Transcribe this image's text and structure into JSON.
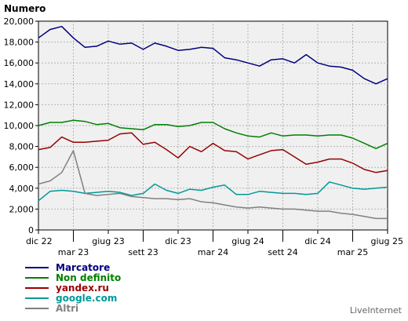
{
  "chart_data": {
    "type": "line",
    "ylabel": "Numero",
    "ylim": [
      0,
      20000
    ],
    "y_ticks": [
      "0",
      "2,000",
      "4,000",
      "6,000",
      "8,000",
      "10,000",
      "12,000",
      "14,000",
      "16,000",
      "18,000",
      "20,000"
    ],
    "x_ticks": [
      "dic 22",
      "mar 23",
      "giug 23",
      "sett 23",
      "dic 23",
      "mar 24",
      "giug 24",
      "sett 24",
      "dic 24",
      "mar 25",
      "giug 25"
    ],
    "grid": true,
    "legend_position": "bottom-left",
    "series": [
      {
        "name": "Marcatore",
        "color": "#00007f",
        "values": [
          18400,
          19200,
          19500,
          18400,
          17500,
          17600,
          18100,
          17800,
          17900,
          17300,
          17900,
          17600,
          17200,
          17300,
          17500,
          17400,
          16500,
          16300,
          16000,
          15700,
          16300,
          16400,
          16000,
          16800,
          16000,
          15700,
          15600,
          15300,
          14500,
          14000,
          14500
        ]
      },
      {
        "name": "Non definito",
        "color": "#008000",
        "values": [
          10000,
          10300,
          10300,
          10500,
          10400,
          10100,
          10200,
          9800,
          9700,
          9600,
          10100,
          10100,
          9900,
          10000,
          10300,
          10300,
          9700,
          9300,
          9000,
          8900,
          9300,
          9000,
          9100,
          9100,
          9000,
          9100,
          9100,
          8800,
          8300,
          7800,
          8300
        ]
      },
      {
        "name": "yandex.ru",
        "color": "#990000",
        "values": [
          7700,
          7900,
          8900,
          8400,
          8400,
          8500,
          8600,
          9200,
          9300,
          8200,
          8400,
          7700,
          6900,
          8000,
          7500,
          8300,
          7600,
          7500,
          6800,
          7200,
          7600,
          7700,
          7000,
          6300,
          6500,
          6800,
          6800,
          6400,
          5800,
          5500,
          5700
        ]
      },
      {
        "name": "google.com",
        "color": "#009999",
        "values": [
          2800,
          3700,
          3800,
          3700,
          3500,
          3600,
          3700,
          3600,
          3300,
          3500,
          4400,
          3800,
          3500,
          3900,
          3800,
          4100,
          4300,
          3400,
          3400,
          3700,
          3600,
          3500,
          3500,
          3400,
          3500,
          4600,
          4300,
          4000,
          3900,
          4000,
          4100
        ]
      },
      {
        "name": "Altri",
        "color": "#808080",
        "values": [
          4400,
          4700,
          5500,
          7600,
          3500,
          3300,
          3400,
          3500,
          3200,
          3100,
          3000,
          3000,
          2900,
          3000,
          2700,
          2600,
          2400,
          2200,
          2100,
          2200,
          2100,
          2000,
          2000,
          1900,
          1800,
          1800,
          1600,
          1500,
          1300,
          1100,
          1100
        ]
      }
    ]
  },
  "watermark": "LiveInternet"
}
